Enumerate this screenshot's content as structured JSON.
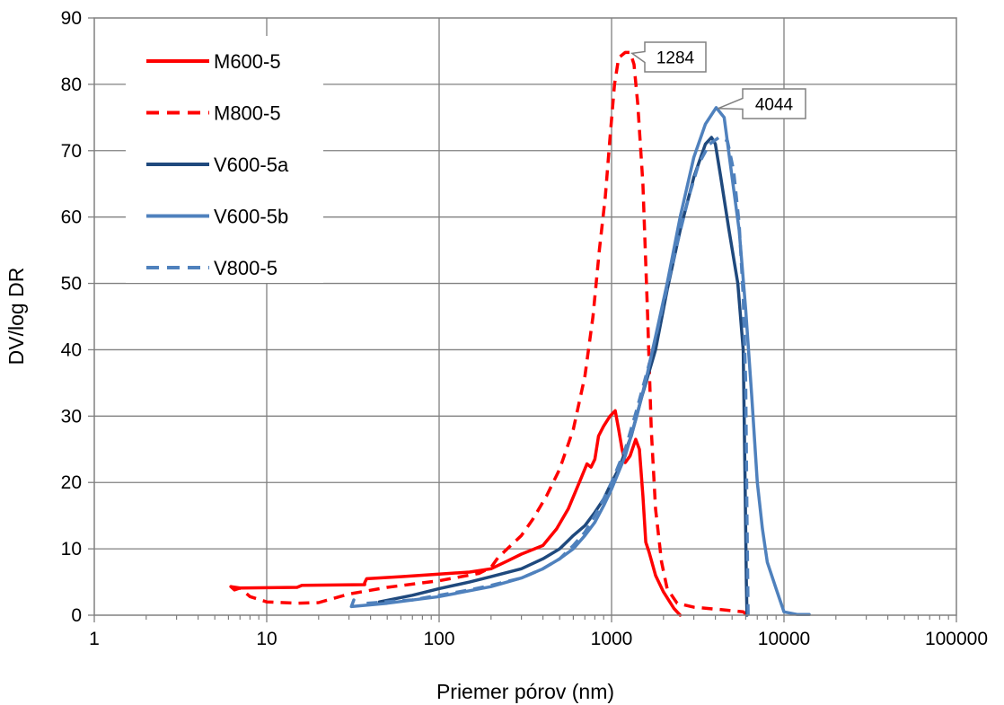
{
  "chart_data": {
    "type": "line",
    "xlabel": "Priemer pórov (nm)",
    "ylabel": "DV/log DR",
    "x_scale": "log",
    "xlim": [
      1,
      100000
    ],
    "ylim": [
      0,
      90
    ],
    "x_ticks": [
      1,
      10,
      100,
      1000,
      10000,
      100000
    ],
    "x_tick_labels": [
      "1",
      "10",
      "100",
      "1000",
      "10000",
      "100000"
    ],
    "y_ticks": [
      0,
      10,
      20,
      30,
      40,
      50,
      60,
      70,
      80,
      90
    ],
    "y_tick_labels": [
      "0",
      "10",
      "20",
      "30",
      "40",
      "50",
      "60",
      "70",
      "80",
      "90"
    ],
    "grid": true,
    "legend_position": "top-left",
    "series": [
      {
        "name": "M600-5",
        "color": "#ff0000",
        "dash": "solid",
        "width": 3.5,
        "points": [
          [
            6.2,
            4.3
          ],
          [
            6.5,
            3.8
          ],
          [
            7,
            4.1
          ],
          [
            15,
            4.2
          ],
          [
            16,
            4.5
          ],
          [
            37,
            4.6
          ],
          [
            37,
            4.9
          ],
          [
            38,
            5.5
          ],
          [
            60,
            5.8
          ],
          [
            100,
            6.2
          ],
          [
            150,
            6.5
          ],
          [
            200,
            7
          ],
          [
            250,
            8.2
          ],
          [
            300,
            9.2
          ],
          [
            400,
            10.5
          ],
          [
            480,
            13
          ],
          [
            560,
            16
          ],
          [
            650,
            20
          ],
          [
            720,
            22.8
          ],
          [
            760,
            22.3
          ],
          [
            800,
            23.5
          ],
          [
            840,
            27
          ],
          [
            900,
            28.5
          ],
          [
            980,
            30
          ],
          [
            1050,
            30.8
          ],
          [
            1100,
            28
          ],
          [
            1150,
            25
          ],
          [
            1200,
            23
          ],
          [
            1280,
            24
          ],
          [
            1380,
            26.5
          ],
          [
            1450,
            25
          ],
          [
            1520,
            18
          ],
          [
            1580,
            11
          ],
          [
            1650,
            9.5
          ],
          [
            1800,
            6
          ],
          [
            2000,
            3.5
          ],
          [
            2300,
            1
          ],
          [
            2500,
            0
          ]
        ]
      },
      {
        "name": "M800-5",
        "color": "#ff0000",
        "dash": "dashed",
        "width": 3.5,
        "points": [
          [
            6.2,
            4.3
          ],
          [
            7,
            4.1
          ],
          [
            8,
            2.8
          ],
          [
            10,
            2.0
          ],
          [
            15,
            1.8
          ],
          [
            20,
            1.9
          ],
          [
            30,
            3.2
          ],
          [
            50,
            4.2
          ],
          [
            100,
            5.2
          ],
          [
            170,
            6.3
          ],
          [
            200,
            7.2
          ],
          [
            220,
            8.7
          ],
          [
            300,
            12
          ],
          [
            350,
            14.5
          ],
          [
            420,
            18
          ],
          [
            500,
            22
          ],
          [
            600,
            28
          ],
          [
            700,
            36
          ],
          [
            780,
            45
          ],
          [
            850,
            55
          ],
          [
            920,
            63
          ],
          [
            980,
            72
          ],
          [
            1040,
            80
          ],
          [
            1100,
            84
          ],
          [
            1200,
            84.8
          ],
          [
            1284,
            84.8
          ],
          [
            1350,
            83
          ],
          [
            1420,
            77
          ],
          [
            1520,
            65
          ],
          [
            1620,
            45
          ],
          [
            1700,
            28
          ],
          [
            1800,
            16
          ],
          [
            1950,
            8
          ],
          [
            2100,
            4
          ],
          [
            2400,
            1.8
          ],
          [
            3000,
            1.2
          ],
          [
            4500,
            0.8
          ],
          [
            5800,
            0.5
          ],
          [
            6000,
            0.2
          ],
          [
            6200,
            0
          ]
        ]
      },
      {
        "name": "V600-5a",
        "color": "#1f497d",
        "dash": "solid",
        "width": 3.5,
        "points": [
          [
            45,
            2
          ],
          [
            70,
            3
          ],
          [
            100,
            4
          ],
          [
            150,
            5
          ],
          [
            200,
            5.8
          ],
          [
            300,
            7
          ],
          [
            400,
            8.5
          ],
          [
            500,
            10
          ],
          [
            600,
            12
          ],
          [
            700,
            13.5
          ],
          [
            800,
            15.5
          ],
          [
            900,
            17.5
          ],
          [
            1000,
            20
          ],
          [
            1100,
            22
          ],
          [
            1300,
            27
          ],
          [
            1500,
            33
          ],
          [
            1800,
            40
          ],
          [
            2100,
            49
          ],
          [
            2500,
            58
          ],
          [
            3000,
            66
          ],
          [
            3500,
            71
          ],
          [
            3800,
            72
          ],
          [
            4000,
            71
          ],
          [
            4300,
            66
          ],
          [
            4800,
            58
          ],
          [
            5400,
            50
          ],
          [
            5800,
            40
          ],
          [
            5950,
            20
          ],
          [
            6050,
            5
          ],
          [
            6100,
            0
          ]
        ]
      },
      {
        "name": "V600-5b",
        "color": "#4f81bd",
        "dash": "solid",
        "width": 3.5,
        "points": [
          [
            32,
            2.3
          ],
          [
            31,
            1.3
          ],
          [
            50,
            1.8
          ],
          [
            100,
            2.8
          ],
          [
            200,
            4.3
          ],
          [
            300,
            5.6
          ],
          [
            400,
            7
          ],
          [
            500,
            8.5
          ],
          [
            600,
            10
          ],
          [
            700,
            12
          ],
          [
            800,
            14
          ],
          [
            900,
            16.5
          ],
          [
            1000,
            19
          ],
          [
            1200,
            24
          ],
          [
            1400,
            30
          ],
          [
            1600,
            36
          ],
          [
            1800,
            42
          ],
          [
            2100,
            50
          ],
          [
            2500,
            60
          ],
          [
            3000,
            69
          ],
          [
            3500,
            74
          ],
          [
            4044,
            76.5
          ],
          [
            4500,
            75
          ],
          [
            5000,
            66
          ],
          [
            5500,
            58
          ],
          [
            6000,
            46
          ],
          [
            6500,
            33
          ],
          [
            7000,
            20
          ],
          [
            7500,
            13
          ],
          [
            8000,
            8
          ],
          [
            9000,
            4
          ],
          [
            10000,
            0.5
          ],
          [
            12000,
            0.1
          ],
          [
            14000,
            0.1
          ]
        ]
      },
      {
        "name": "V800-5",
        "color": "#4f81bd",
        "dash": "dashed",
        "width": 3.5,
        "points": [
          [
            38,
            1.8
          ],
          [
            70,
            2.3
          ],
          [
            100,
            3
          ],
          [
            150,
            3.8
          ],
          [
            200,
            4.5
          ],
          [
            300,
            5.6
          ],
          [
            400,
            7
          ],
          [
            500,
            8.5
          ],
          [
            600,
            10.5
          ],
          [
            700,
            12.5
          ],
          [
            800,
            15
          ],
          [
            900,
            17.5
          ],
          [
            1000,
            20
          ],
          [
            1200,
            25
          ],
          [
            1400,
            31
          ],
          [
            1700,
            39
          ],
          [
            2000,
            47
          ],
          [
            2400,
            56
          ],
          [
            2800,
            63
          ],
          [
            3200,
            68
          ],
          [
            3700,
            71
          ],
          [
            4200,
            72
          ],
          [
            4700,
            71.5
          ],
          [
            5100,
            67
          ],
          [
            5500,
            59
          ],
          [
            5800,
            48
          ],
          [
            6000,
            35
          ],
          [
            6100,
            15
          ],
          [
            6200,
            0
          ]
        ]
      }
    ],
    "annotations": [
      {
        "text": "1284",
        "x": 1284,
        "y": 84.8
      },
      {
        "text": "4044",
        "x": 4044,
        "y": 76.5
      }
    ]
  }
}
